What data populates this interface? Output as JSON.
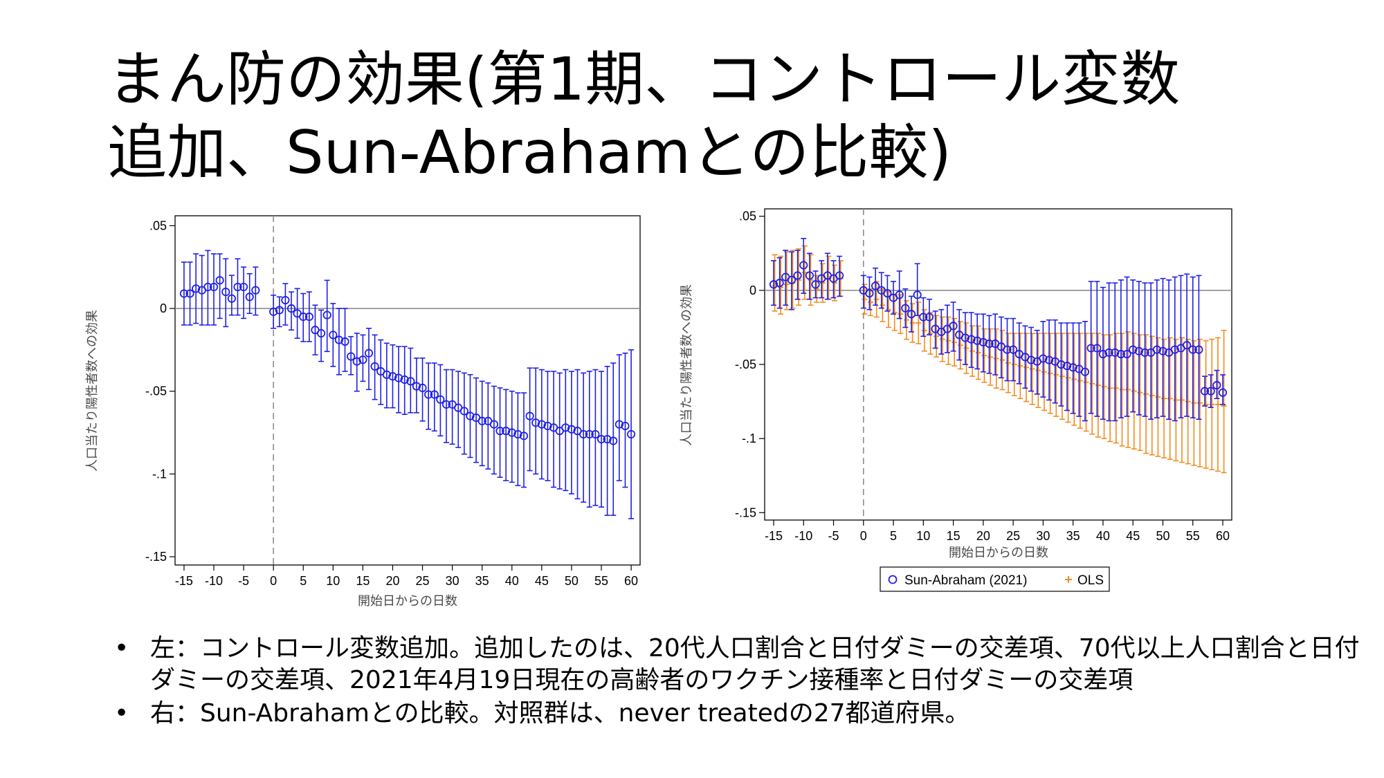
{
  "slide": {
    "title_line1": "まん防の効果(第1期、コントロール変数",
    "title_line2": "追加、Sun-Abrahamとの比較)"
  },
  "colors": {
    "series1": "#1f1fe6",
    "series2": "#f28b1d",
    "reference": "#8c8c8c"
  },
  "bullets": [
    {
      "marker": "•",
      "text": "左：コントロール変数追加。追加したのは、20代人口割合と日付ダミーの交差項、70代以上人口割合と日付ダミーの交差項、2021年4月19日現在の高齢者のワクチン接種率と日付ダミーの交差項"
    },
    {
      "marker": "•",
      "text": "右：Sun-Abrahamとの比較。対照群は、never treatedの27都道府県。"
    }
  ],
  "chart_data": [
    {
      "type": "scatter",
      "panel": "left",
      "xlabel": "開始日からの日数",
      "ylabel": "人口当たり陽性者数への効果",
      "xlim": [
        -16.5,
        61.5
      ],
      "ylim": [
        -0.155,
        0.056
      ],
      "xticks": [
        "-15",
        "-10",
        "-5",
        "0",
        "5",
        "10",
        "15",
        "20",
        "25",
        "30",
        "35",
        "40",
        "45",
        "50",
        "55",
        "60"
      ],
      "yticks": [
        ".05",
        "0",
        "-.05",
        "-.1",
        "-.15"
      ],
      "reference_lines": {
        "y": 0,
        "x": 0
      },
      "x": [
        -15,
        -14,
        -13,
        -12,
        -11,
        -10,
        -9,
        -8,
        -7,
        -6,
        -5,
        -4,
        -3,
        -2,
        0,
        1,
        2,
        3,
        4,
        5,
        6,
        7,
        8,
        9,
        10,
        11,
        12,
        13,
        14,
        15,
        16,
        17,
        18,
        19,
        20,
        21,
        22,
        23,
        24,
        25,
        26,
        27,
        28,
        29,
        30,
        31,
        32,
        33,
        34,
        35,
        36,
        37,
        38,
        39,
        40,
        41,
        42,
        43,
        44,
        45,
        46,
        47,
        48,
        49,
        50,
        51,
        52,
        53,
        54,
        55,
        56,
        57,
        58,
        59,
        60
      ],
      "series": [
        {
          "estimate": [
            0.009,
            0.009,
            0.012,
            0.011,
            0.013,
            0.013,
            0.017,
            0.01,
            0.006,
            0.013,
            0.013,
            0.007,
            0.011,
            null,
            -0.002,
            -0.001,
            0.005,
            0.0,
            -0.003,
            -0.005,
            -0.005,
            -0.013,
            -0.015,
            -0.004,
            -0.016,
            -0.019,
            -0.02,
            -0.029,
            -0.032,
            -0.031,
            -0.027,
            -0.035,
            -0.038,
            -0.04,
            -0.041,
            -0.042,
            -0.043,
            -0.044,
            -0.047,
            -0.048,
            -0.052,
            -0.052,
            -0.055,
            -0.058,
            -0.058,
            -0.06,
            -0.062,
            -0.065,
            -0.066,
            -0.068,
            -0.068,
            -0.07,
            -0.074,
            -0.074,
            -0.075,
            -0.076,
            -0.077,
            -0.065,
            -0.069,
            -0.07,
            -0.071,
            -0.072,
            -0.074,
            -0.072,
            -0.073,
            -0.074,
            -0.076,
            -0.076,
            -0.076,
            -0.079,
            -0.079,
            -0.08,
            -0.07,
            -0.071,
            -0.076
          ],
          "ci_low": [
            -0.01,
            -0.01,
            -0.009,
            -0.01,
            -0.01,
            -0.01,
            -0.006,
            -0.011,
            -0.004,
            -0.004,
            -0.006,
            -0.003,
            -0.004,
            null,
            -0.012,
            -0.011,
            -0.01,
            -0.013,
            -0.018,
            -0.02,
            -0.02,
            -0.028,
            -0.032,
            -0.026,
            -0.035,
            -0.04,
            -0.038,
            -0.04,
            -0.05,
            -0.044,
            -0.049,
            -0.055,
            -0.058,
            -0.06,
            -0.06,
            -0.063,
            -0.064,
            -0.063,
            -0.063,
            -0.068,
            -0.073,
            -0.074,
            -0.077,
            -0.081,
            -0.082,
            -0.084,
            -0.088,
            -0.09,
            -0.093,
            -0.095,
            -0.097,
            -0.1,
            -0.102,
            -0.104,
            -0.105,
            -0.107,
            -0.108,
            -0.098,
            -0.1,
            -0.103,
            -0.104,
            -0.108,
            -0.109,
            -0.11,
            -0.112,
            -0.115,
            -0.117,
            -0.12,
            -0.119,
            -0.12,
            -0.125,
            -0.125,
            -0.104,
            -0.108,
            -0.127
          ],
          "ci_high": [
            0.028,
            0.028,
            0.033,
            0.032,
            0.035,
            0.033,
            0.033,
            0.03,
            0.02,
            0.03,
            0.025,
            0.021,
            0.025,
            null,
            0.008,
            0.007,
            0.015,
            0.01,
            0.012,
            0.009,
            0.01,
            0.002,
            -0.001,
            0.017,
            0.003,
            0.0,
            0.0,
            -0.017,
            -0.015,
            -0.016,
            -0.012,
            -0.016,
            -0.019,
            -0.021,
            -0.022,
            -0.023,
            -0.023,
            -0.024,
            -0.03,
            -0.03,
            -0.033,
            -0.033,
            -0.034,
            -0.037,
            -0.037,
            -0.038,
            -0.039,
            -0.04,
            -0.042,
            -0.044,
            -0.045,
            -0.047,
            -0.048,
            -0.049,
            -0.05,
            -0.051,
            -0.051,
            -0.036,
            -0.036,
            -0.037,
            -0.038,
            -0.038,
            -0.039,
            -0.037,
            -0.038,
            -0.037,
            -0.039,
            -0.038,
            -0.037,
            -0.038,
            -0.035,
            -0.033,
            -0.028,
            -0.027,
            -0.025
          ]
        }
      ]
    },
    {
      "type": "scatter",
      "panel": "right",
      "xlabel": "開始日からの日数",
      "ylabel": "人口当たり陽性者数への効果",
      "xlim": [
        -16.5,
        61.5
      ],
      "ylim": [
        -0.155,
        0.055
      ],
      "xticks": [
        "-15",
        "-10",
        "-5",
        "0",
        "5",
        "10",
        "15",
        "20",
        "25",
        "30",
        "35",
        "40",
        "45",
        "50",
        "55",
        "60"
      ],
      "yticks": [
        ".05",
        "0",
        "-.05",
        "-.1",
        "-.15"
      ],
      "reference_lines": {
        "y": 0,
        "x": 0
      },
      "legend": {
        "position": "bottom"
      },
      "x": [
        -15,
        -14,
        -13,
        -12,
        -11,
        -10,
        -9,
        -8,
        -7,
        -6,
        -5,
        -4,
        -3,
        -2,
        0,
        1,
        2,
        3,
        4,
        5,
        6,
        7,
        8,
        9,
        10,
        11,
        12,
        13,
        14,
        15,
        16,
        17,
        18,
        19,
        20,
        21,
        22,
        23,
        24,
        25,
        26,
        27,
        28,
        29,
        30,
        31,
        32,
        33,
        34,
        35,
        36,
        37,
        38,
        39,
        40,
        41,
        42,
        43,
        44,
        45,
        46,
        47,
        48,
        49,
        50,
        51,
        52,
        53,
        54,
        55,
        56,
        57,
        58,
        59,
        60
      ],
      "series": [
        {
          "name": "Sun-Abraham (2021)",
          "marker": "circle",
          "estimate": [
            0.004,
            0.005,
            0.009,
            0.007,
            0.01,
            0.017,
            0.01,
            0.004,
            0.008,
            0.01,
            0.008,
            0.01,
            null,
            null,
            0.0,
            -0.002,
            0.003,
            0.0,
            -0.002,
            -0.005,
            -0.003,
            -0.012,
            -0.016,
            -0.003,
            -0.018,
            -0.018,
            -0.026,
            -0.028,
            -0.026,
            -0.024,
            -0.03,
            -0.032,
            -0.033,
            -0.034,
            -0.035,
            -0.036,
            -0.036,
            -0.038,
            -0.04,
            -0.04,
            -0.043,
            -0.045,
            -0.047,
            -0.048,
            -0.046,
            -0.047,
            -0.048,
            -0.05,
            -0.051,
            -0.052,
            -0.053,
            -0.055,
            -0.039,
            -0.039,
            -0.043,
            -0.042,
            -0.042,
            -0.043,
            -0.043,
            -0.04,
            -0.041,
            -0.042,
            -0.042,
            -0.04,
            -0.041,
            -0.042,
            -0.04,
            -0.039,
            -0.037,
            -0.04,
            -0.04,
            -0.068,
            -0.068,
            -0.064,
            -0.069
          ],
          "ci_low": [
            -0.01,
            -0.012,
            -0.01,
            -0.013,
            -0.006,
            -0.002,
            -0.006,
            -0.005,
            -0.005,
            -0.006,
            -0.005,
            -0.004,
            null,
            null,
            -0.012,
            -0.013,
            -0.01,
            -0.012,
            -0.014,
            -0.016,
            -0.019,
            -0.025,
            -0.028,
            -0.017,
            -0.031,
            -0.03,
            -0.039,
            -0.043,
            -0.042,
            -0.041,
            -0.047,
            -0.05,
            -0.052,
            -0.053,
            -0.055,
            -0.056,
            -0.057,
            -0.059,
            -0.061,
            -0.061,
            -0.063,
            -0.066,
            -0.068,
            -0.07,
            -0.072,
            -0.074,
            -0.076,
            -0.078,
            -0.081,
            -0.083,
            -0.085,
            -0.088,
            -0.083,
            -0.085,
            -0.087,
            -0.088,
            -0.088,
            -0.086,
            -0.085,
            -0.082,
            -0.084,
            -0.085,
            -0.087,
            -0.086,
            -0.085,
            -0.087,
            -0.088,
            -0.086,
            -0.085,
            -0.086,
            -0.087,
            -0.078,
            -0.079,
            -0.073,
            -0.077
          ],
          "ci_high": [
            0.02,
            0.022,
            0.027,
            0.026,
            0.027,
            0.035,
            0.025,
            0.013,
            0.02,
            0.025,
            0.02,
            0.023,
            null,
            null,
            0.01,
            0.009,
            0.015,
            0.012,
            0.01,
            0.006,
            0.013,
            0.001,
            -0.004,
            0.018,
            -0.005,
            -0.006,
            -0.014,
            -0.013,
            -0.01,
            -0.008,
            -0.013,
            -0.015,
            -0.015,
            -0.016,
            -0.016,
            -0.017,
            -0.016,
            -0.018,
            -0.019,
            -0.019,
            -0.022,
            -0.024,
            -0.025,
            -0.027,
            -0.021,
            -0.02,
            -0.02,
            -0.022,
            -0.022,
            -0.022,
            -0.022,
            -0.021,
            0.006,
            0.006,
            0.002,
            0.005,
            0.005,
            0.007,
            0.009,
            0.007,
            0.006,
            0.005,
            0.005,
            0.007,
            0.008,
            0.007,
            0.009,
            0.01,
            0.011,
            0.009,
            0.01,
            -0.058,
            -0.057,
            -0.054,
            -0.057
          ]
        },
        {
          "name": "OLS",
          "marker": "plus",
          "estimate": [
            0.003,
            0.002,
            0.004,
            0.005,
            0.007,
            0.012,
            0.007,
            0.001,
            0.005,
            0.008,
            0.005,
            0.008,
            null,
            null,
            -0.006,
            -0.008,
            -0.006,
            -0.01,
            -0.013,
            -0.015,
            -0.016,
            -0.02,
            -0.022,
            -0.022,
            -0.027,
            -0.029,
            -0.031,
            -0.033,
            -0.034,
            -0.035,
            -0.037,
            -0.039,
            -0.041,
            -0.042,
            -0.044,
            -0.045,
            -0.046,
            -0.047,
            -0.049,
            -0.05,
            -0.051,
            -0.052,
            -0.053,
            -0.054,
            -0.055,
            -0.056,
            -0.057,
            -0.058,
            -0.059,
            -0.06,
            -0.061,
            -0.062,
            -0.063,
            -0.064,
            -0.065,
            -0.066,
            -0.066,
            -0.067,
            -0.067,
            -0.068,
            -0.069,
            -0.07,
            -0.071,
            -0.072,
            -0.073,
            -0.073,
            -0.074,
            -0.074,
            -0.075,
            -0.076,
            -0.076,
            -0.077,
            -0.077,
            -0.077,
            -0.078
          ],
          "ci_low": [
            -0.014,
            -0.016,
            -0.013,
            -0.012,
            -0.01,
            -0.006,
            -0.01,
            -0.008,
            -0.008,
            -0.006,
            -0.007,
            -0.004,
            null,
            null,
            -0.016,
            -0.017,
            -0.018,
            -0.021,
            -0.025,
            -0.027,
            -0.029,
            -0.033,
            -0.035,
            -0.036,
            -0.041,
            -0.043,
            -0.045,
            -0.048,
            -0.05,
            -0.051,
            -0.053,
            -0.056,
            -0.058,
            -0.06,
            -0.062,
            -0.064,
            -0.066,
            -0.067,
            -0.069,
            -0.071,
            -0.073,
            -0.075,
            -0.077,
            -0.079,
            -0.081,
            -0.083,
            -0.085,
            -0.087,
            -0.089,
            -0.091,
            -0.093,
            -0.095,
            -0.097,
            -0.099,
            -0.1,
            -0.102,
            -0.103,
            -0.105,
            -0.106,
            -0.107,
            -0.108,
            -0.11,
            -0.111,
            -0.112,
            -0.113,
            -0.114,
            -0.115,
            -0.116,
            -0.117,
            -0.118,
            -0.119,
            -0.12,
            -0.121,
            -0.122,
            -0.123
          ],
          "ci_high": [
            0.024,
            0.023,
            0.026,
            0.027,
            0.028,
            0.03,
            0.024,
            0.01,
            0.018,
            0.023,
            0.017,
            0.02,
            null,
            null,
            0.004,
            0.001,
            0.006,
            0.001,
            -0.001,
            -0.003,
            -0.003,
            -0.007,
            -0.009,
            -0.008,
            -0.013,
            -0.015,
            -0.017,
            -0.018,
            -0.018,
            -0.019,
            -0.021,
            -0.022,
            -0.024,
            -0.024,
            -0.026,
            -0.026,
            -0.026,
            -0.027,
            -0.029,
            -0.029,
            -0.029,
            -0.029,
            -0.029,
            -0.029,
            -0.029,
            -0.029,
            -0.029,
            -0.029,
            -0.029,
            -0.029,
            -0.029,
            -0.029,
            -0.029,
            -0.029,
            -0.03,
            -0.03,
            -0.029,
            -0.029,
            -0.028,
            -0.029,
            -0.03,
            -0.03,
            -0.031,
            -0.032,
            -0.033,
            -0.032,
            -0.033,
            -0.032,
            -0.033,
            -0.034,
            -0.033,
            -0.034,
            -0.033,
            -0.032,
            -0.027
          ]
        }
      ]
    }
  ]
}
